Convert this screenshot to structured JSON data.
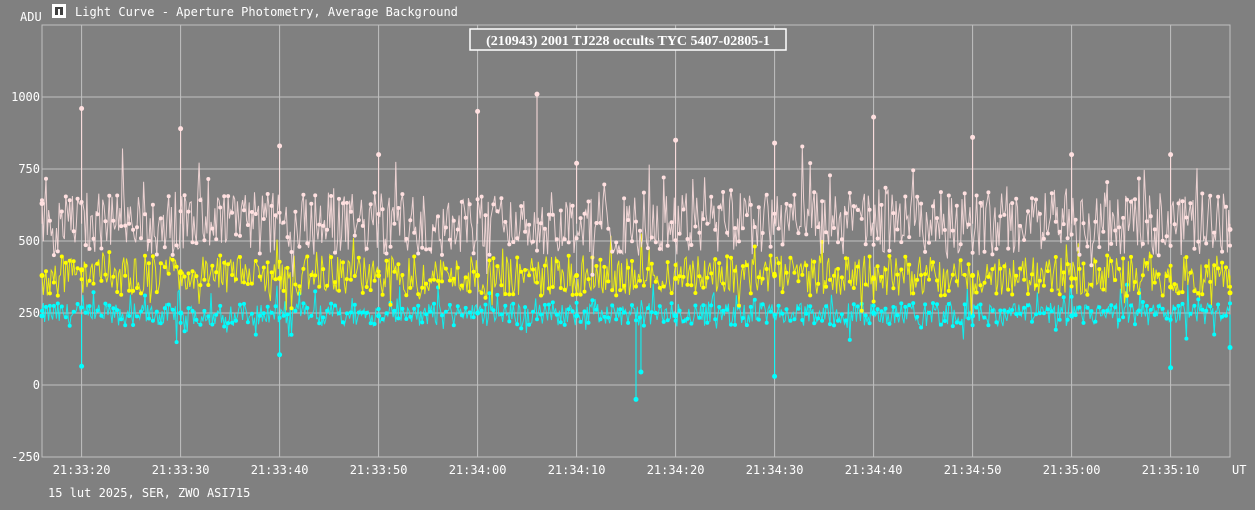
{
  "header": {
    "title": "Light Curve - Aperture Photometry, Average Background",
    "icon": "app-window-icon"
  },
  "footer": {
    "caption": "15 lut 2025, SER, ZWO ASI715"
  },
  "colors": {
    "background": "#808080",
    "grid": "#c0c0c0",
    "target": "#00ffff",
    "comparison1": "#ffff00",
    "comparison2": "#ffe0e0"
  },
  "chart_data": {
    "type": "line",
    "title": "(210943) 2001 TJ228 occults TYC 5407-02805-1",
    "ylabel": "ADU",
    "xlabel": "UT",
    "ylim": [
      -250,
      1250
    ],
    "xlim": [
      "21:33:16",
      "21:35:16"
    ],
    "yticks": [
      1000,
      750,
      500,
      250,
      0,
      -250
    ],
    "xticks": [
      "21:33:20",
      "21:33:30",
      "21:33:40",
      "21:33:50",
      "21:34:00",
      "21:34:10",
      "21:34:20",
      "21:34:30",
      "21:34:40",
      "21:34:50",
      "21:35:00",
      "21:35:10"
    ],
    "grid": true,
    "series": [
      {
        "color": "#ffe0e0",
        "typical_level": 560,
        "x": [
          "21:33:16",
          "21:33:20",
          "21:33:30",
          "21:33:40",
          "21:33:50",
          "21:34:00",
          "21:34:06",
          "21:34:10",
          "21:34:20",
          "21:34:30",
          "21:34:40",
          "21:34:50",
          "21:35:00",
          "21:35:10",
          "21:35:16"
        ],
        "values": [
          630,
          960,
          890,
          830,
          800,
          950,
          1010,
          770,
          850,
          840,
          930,
          860,
          800,
          800,
          540
        ]
      },
      {
        "color": "#ffff00",
        "typical_level": 380,
        "x": [
          "21:33:16",
          "21:33:20",
          "21:33:30",
          "21:33:40",
          "21:33:50",
          "21:34:00",
          "21:34:10",
          "21:34:20",
          "21:34:30",
          "21:34:40",
          "21:34:50",
          "21:35:00",
          "21:35:10",
          "21:35:16"
        ],
        "values": [
          380,
          400,
          390,
          370,
          380,
          380,
          380,
          370,
          380,
          370,
          380,
          370,
          340,
          320
        ]
      },
      {
        "color": "#00ffff",
        "typical_level": 245,
        "x": [
          "21:33:16",
          "21:33:20",
          "21:33:30",
          "21:33:40",
          "21:33:50",
          "21:34:00",
          "21:34:10",
          "21:34:16",
          "21:34:16.5",
          "21:34:20",
          "21:34:30",
          "21:34:40",
          "21:34:50",
          "21:35:00",
          "21:35:10",
          "21:35:16"
        ],
        "values": [
          240,
          65,
          250,
          105,
          240,
          250,
          240,
          -50,
          45,
          240,
          30,
          250,
          240,
          240,
          60,
          130
        ]
      }
    ]
  }
}
